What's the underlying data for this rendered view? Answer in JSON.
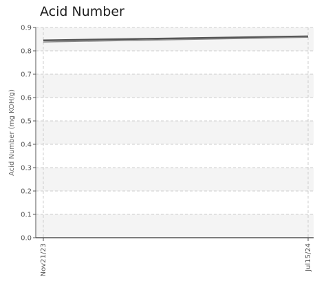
{
  "chart_data": {
    "type": "line",
    "title": "Acid Number",
    "xlabel": "",
    "ylabel": "Acid Number (mg KOH/g)",
    "ylim": [
      0,
      0.9
    ],
    "yticks": [
      "0.0",
      "0.1",
      "0.2",
      "0.3",
      "0.4",
      "0.5",
      "0.6",
      "0.7",
      "0.8",
      "0.9"
    ],
    "xticks": [
      "Nov21/23",
      "Jul15/24"
    ],
    "x": [
      "2023-11-21",
      "2024-07-15"
    ],
    "series": [
      {
        "values": [
          0.845,
          0.862
        ],
        "color": "#555555"
      },
      {
        "values": [
          0.838,
          0.858
        ],
        "color": "#888888"
      }
    ],
    "grid": true
  }
}
